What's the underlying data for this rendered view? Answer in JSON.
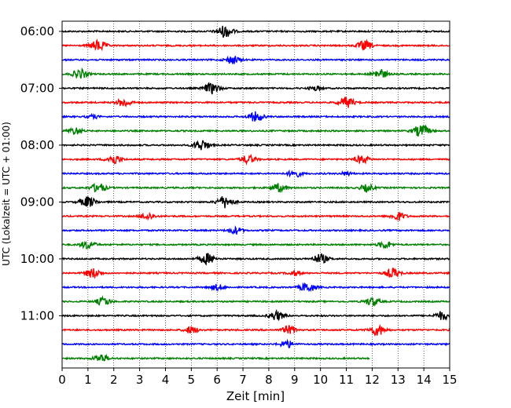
{
  "chart_data": {
    "type": "line",
    "title": "",
    "xlabel": "Zeit  [min]",
    "ylabel": "UTC (Lokalzeit = UTC + 01:00)",
    "xlim": [
      0,
      15
    ],
    "x_ticks": [
      "0",
      "1",
      "2",
      "3",
      "4",
      "5",
      "6",
      "7",
      "8",
      "9",
      "10",
      "11",
      "12",
      "13",
      "14",
      "15"
    ],
    "y_tick_labels": [
      "06:00",
      "07:00",
      "08:00",
      "09:00",
      "10:00",
      "11:00"
    ],
    "y_tick_traces": [
      0,
      4,
      8,
      12,
      16,
      20
    ],
    "trace_interval_minutes": 15,
    "grid": "vertical dotted",
    "trace_colors": [
      "#000000",
      "#ff0000",
      "#0000ff",
      "#008000"
    ],
    "last_trace_end_minute": 11.9,
    "traces": [
      {
        "start": "06:00",
        "events": [
          {
            "t": 6.3,
            "amp": 1.0
          }
        ]
      },
      {
        "start": "06:15",
        "events": [
          {
            "t": 1.4,
            "amp": 0.9
          },
          {
            "t": 11.7,
            "amp": 0.8
          }
        ]
      },
      {
        "start": "06:30",
        "events": [
          {
            "t": 6.6,
            "amp": 0.7
          }
        ]
      },
      {
        "start": "06:45",
        "events": [
          {
            "t": 0.7,
            "amp": 0.8
          },
          {
            "t": 12.3,
            "amp": 0.8
          }
        ]
      },
      {
        "start": "07:00",
        "events": [
          {
            "t": 5.8,
            "amp": 0.9
          },
          {
            "t": 9.8,
            "amp": 0.4
          }
        ]
      },
      {
        "start": "07:15",
        "events": [
          {
            "t": 2.4,
            "amp": 0.7
          },
          {
            "t": 11.0,
            "amp": 0.9
          }
        ]
      },
      {
        "start": "07:30",
        "events": [
          {
            "t": 7.5,
            "amp": 0.8
          },
          {
            "t": 1.2,
            "amp": 0.3
          }
        ]
      },
      {
        "start": "07:45",
        "events": [
          {
            "t": 0.5,
            "amp": 0.6
          },
          {
            "t": 13.9,
            "amp": 1.0
          }
        ]
      },
      {
        "start": "08:00",
        "events": [
          {
            "t": 5.4,
            "amp": 0.9
          }
        ]
      },
      {
        "start": "08:15",
        "events": [
          {
            "t": 2.0,
            "amp": 0.8
          },
          {
            "t": 7.2,
            "amp": 0.7
          },
          {
            "t": 11.6,
            "amp": 0.7
          }
        ]
      },
      {
        "start": "08:30",
        "events": [
          {
            "t": 9.0,
            "amp": 0.6
          },
          {
            "t": 11.0,
            "amp": 0.3
          }
        ]
      },
      {
        "start": "08:45",
        "events": [
          {
            "t": 1.4,
            "amp": 0.8
          },
          {
            "t": 8.4,
            "amp": 0.7
          },
          {
            "t": 11.8,
            "amp": 0.6
          }
        ]
      },
      {
        "start": "09:00",
        "events": [
          {
            "t": 1.0,
            "amp": 0.9
          },
          {
            "t": 6.3,
            "amp": 1.0
          }
        ]
      },
      {
        "start": "09:15",
        "events": [
          {
            "t": 3.3,
            "amp": 0.6
          },
          {
            "t": 13.0,
            "amp": 0.7
          }
        ]
      },
      {
        "start": "09:30",
        "events": [
          {
            "t": 6.7,
            "amp": 0.6
          }
        ]
      },
      {
        "start": "09:45",
        "events": [
          {
            "t": 1.0,
            "amp": 0.7
          },
          {
            "t": 12.5,
            "amp": 0.6
          }
        ]
      },
      {
        "start": "10:00",
        "events": [
          {
            "t": 5.6,
            "amp": 0.9
          },
          {
            "t": 10.0,
            "amp": 0.8
          }
        ]
      },
      {
        "start": "10:15",
        "events": [
          {
            "t": 1.2,
            "amp": 0.8
          },
          {
            "t": 9.0,
            "amp": 0.4
          },
          {
            "t": 12.8,
            "amp": 0.8
          }
        ]
      },
      {
        "start": "10:30",
        "events": [
          {
            "t": 6.0,
            "amp": 0.5
          },
          {
            "t": 9.5,
            "amp": 0.8
          }
        ]
      },
      {
        "start": "10:45",
        "events": [
          {
            "t": 1.6,
            "amp": 0.7
          },
          {
            "t": 12.0,
            "amp": 0.7
          }
        ]
      },
      {
        "start": "11:00",
        "events": [
          {
            "t": 8.3,
            "amp": 0.8
          },
          {
            "t": 14.7,
            "amp": 0.7
          }
        ]
      },
      {
        "start": "11:15",
        "events": [
          {
            "t": 5.0,
            "amp": 0.6
          },
          {
            "t": 8.8,
            "amp": 0.7
          },
          {
            "t": 12.2,
            "amp": 0.9
          }
        ]
      },
      {
        "start": "11:30",
        "events": [
          {
            "t": 8.7,
            "amp": 0.6
          }
        ]
      },
      {
        "start": "11:45",
        "events": [
          {
            "t": 1.5,
            "amp": 0.7
          }
        ]
      }
    ]
  }
}
